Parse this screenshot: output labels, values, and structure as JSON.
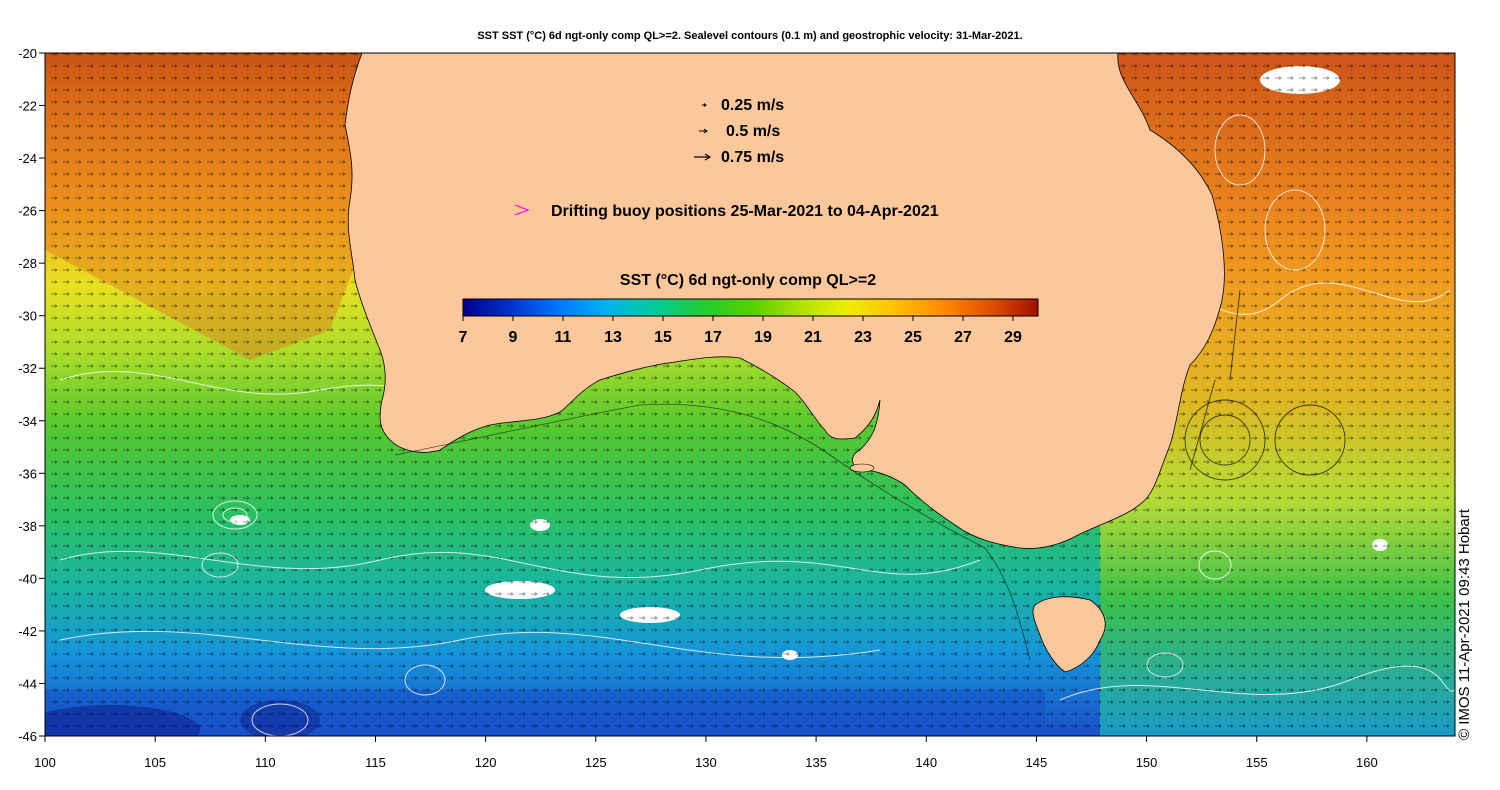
{
  "title": "SST SST (°C) 6d ngt-only comp QL>=2. Sealevel contours (0.1 m) and geostrophic velocity: 31-Mar-2021.",
  "credit": "© IMOS 11-Apr-2021 09:43 Hobart",
  "velocity_legend": [
    {
      "label": "0.25 m/s",
      "speed": 0.25
    },
    {
      "label": "0.5 m/s",
      "speed": 0.5
    },
    {
      "label": "0.75 m/s",
      "speed": 0.75
    }
  ],
  "buoy_legend": {
    "label": "Drifting buoy positions 25-Mar-2021 to 04-Apr-2021",
    "color": "#ff00ff"
  },
  "colorbar": {
    "title": "SST (°C) 6d ngt-only comp QL>=2",
    "min": 7,
    "max": 30,
    "ticks": [
      "7",
      "9",
      "11",
      "13",
      "15",
      "17",
      "19",
      "21",
      "23",
      "25",
      "27",
      "29"
    ],
    "colors": [
      "#00008b",
      "#0033cc",
      "#0077ff",
      "#00b4ee",
      "#00cc99",
      "#22cc33",
      "#55d000",
      "#aae000",
      "#eeee00",
      "#ffc000",
      "#ff8c00",
      "#e05000",
      "#a01000"
    ]
  },
  "map": {
    "lon_range": [
      100,
      164
    ],
    "lat_range": [
      -46,
      -20
    ],
    "x_ticks": [
      "100",
      "105",
      "110",
      "115",
      "120",
      "125",
      "130",
      "135",
      "140",
      "145",
      "150",
      "155",
      "160"
    ],
    "y_ticks": [
      "-20",
      "-22",
      "-24",
      "-26",
      "-28",
      "-30",
      "-32",
      "-34",
      "-36",
      "-38",
      "-40",
      "-42",
      "-44",
      "-46"
    ],
    "land_color": "#fcc89b"
  }
}
